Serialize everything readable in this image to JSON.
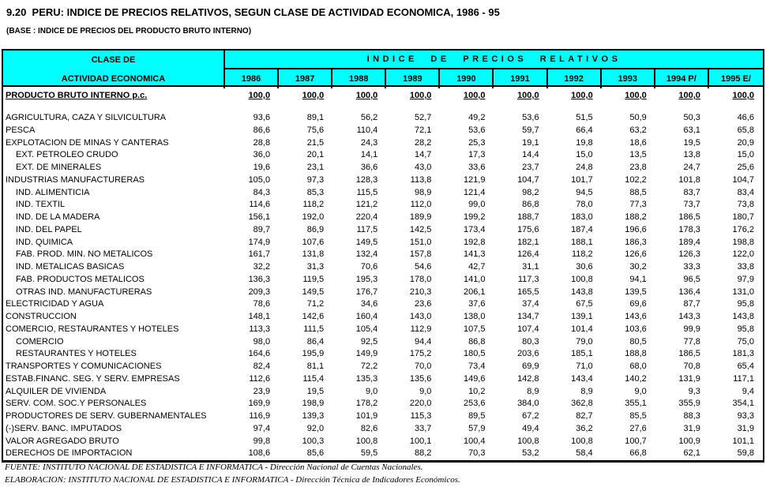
{
  "title": "9.20  PERU: INDICE DE PRECIOS RELATIVOS, SEGUN CLASE DE ACTIVIDAD ECONOMICA, 1986 - 95",
  "subtitle": "(BASE : INDICE DE PRECIOS DEL PRODUCTO BRUTO INTERNO)",
  "colors": {
    "header_fill": "#00ffff",
    "border": "#000000",
    "background": "#ffffff"
  },
  "table": {
    "left_header_line1": "CLASE DE",
    "left_header_line2": "ACTIVIDAD ECONOMICA",
    "group_header": "INDICE DE PRECIOS RELATIVOS",
    "years": [
      "1986",
      "1987",
      "1988",
      "1989",
      "1990",
      "1991",
      "1992",
      "1993",
      "1994 P/",
      "1995 E/"
    ],
    "rows": [
      {
        "label": "PRODUCTO BRUTO INTERNO p.c.",
        "bold": true,
        "indent": false,
        "gap_after": true,
        "values": [
          "100,0",
          "100,0",
          "100,0",
          "100,0",
          "100,0",
          "100,0",
          "100,0",
          "100,0",
          "100,0",
          "100,0"
        ]
      },
      {
        "label": "AGRICULTURA, CAZA Y SILVICULTURA",
        "indent": false,
        "values": [
          "93,6",
          "89,1",
          "56,2",
          "52,7",
          "49,2",
          "53,6",
          "51,5",
          "50,9",
          "50,3",
          "46,6"
        ]
      },
      {
        "label": "PESCA",
        "indent": false,
        "values": [
          "86,6",
          "75,6",
          "110,4",
          "72,1",
          "53,6",
          "59,7",
          "66,4",
          "63,2",
          "63,1",
          "65,8"
        ]
      },
      {
        "label": "EXPLOTACION DE MINAS Y CANTERAS",
        "indent": false,
        "values": [
          "28,8",
          "21,5",
          "24,3",
          "28,2",
          "25,3",
          "19,1",
          "19,8",
          "18,6",
          "19,5",
          "20,9"
        ]
      },
      {
        "label": "EXT. PETROLEO CRUDO",
        "indent": true,
        "values": [
          "36,0",
          "20,1",
          "14,1",
          "14,7",
          "17,3",
          "14,4",
          "15,0",
          "13,5",
          "13,8",
          "15,0"
        ]
      },
      {
        "label": "EXT. DE MINERALES",
        "indent": true,
        "values": [
          "19,6",
          "23,1",
          "36,6",
          "43,0",
          "33,6",
          "23,7",
          "24,8",
          "23,8",
          "24,7",
          "25,6"
        ]
      },
      {
        "label": "INDUSTRIAS MANUFACTURERAS",
        "indent": false,
        "values": [
          "105,0",
          "97,3",
          "128,3",
          "113,8",
          "121,9",
          "104,7",
          "101,7",
          "102,2",
          "101,8",
          "104,7"
        ]
      },
      {
        "label": "IND. ALIMENTICIA",
        "indent": true,
        "values": [
          "84,3",
          "85,3",
          "115,5",
          "98,9",
          "121,4",
          "98,2",
          "94,5",
          "88,5",
          "83,7",
          "83,4"
        ]
      },
      {
        "label": "IND. TEXTIL",
        "indent": true,
        "values": [
          "114,6",
          "118,2",
          "121,2",
          "112,0",
          "99,0",
          "86,8",
          "78,0",
          "77,3",
          "73,7",
          "73,8"
        ]
      },
      {
        "label": "IND. DE LA MADERA",
        "indent": true,
        "values": [
          "156,1",
          "192,0",
          "220,4",
          "189,9",
          "199,2",
          "188,7",
          "183,0",
          "188,2",
          "186,5",
          "180,7"
        ]
      },
      {
        "label": "IND. DEL PAPEL",
        "indent": true,
        "values": [
          "89,7",
          "86,9",
          "117,5",
          "142,5",
          "173,4",
          "175,6",
          "187,4",
          "196,6",
          "178,3",
          "176,2"
        ]
      },
      {
        "label": "IND. QUIMICA",
        "indent": true,
        "values": [
          "174,9",
          "107,6",
          "149,5",
          "151,0",
          "192,8",
          "182,1",
          "188,1",
          "186,3",
          "189,4",
          "198,8"
        ]
      },
      {
        "label": "FAB. PROD. MIN. NO METALICOS",
        "indent": true,
        "values": [
          "161,7",
          "131,8",
          "132,4",
          "157,8",
          "141,3",
          "126,4",
          "118,2",
          "126,6",
          "126,3",
          "122,0"
        ]
      },
      {
        "label": "IND. METALICAS BASICAS",
        "indent": true,
        "values": [
          "32,2",
          "31,3",
          "70,6",
          "54,6",
          "42,7",
          "31,1",
          "30,6",
          "30,2",
          "33,3",
          "33,8"
        ]
      },
      {
        "label": "FAB. PRODUCTOS METALICOS",
        "indent": true,
        "values": [
          "136,3",
          "119,5",
          "195,3",
          "178,0",
          "141,0",
          "117,3",
          "100,8",
          "94,1",
          "96,5",
          "97,9"
        ]
      },
      {
        "label": "OTRAS IND. MANUFACTURERAS",
        "indent": true,
        "values": [
          "209,3",
          "149,5",
          "176,7",
          "210,3",
          "206,1",
          "165,5",
          "143,8",
          "139,5",
          "136,4",
          "131,0"
        ]
      },
      {
        "label": "ELECTRICIDAD Y AGUA",
        "indent": false,
        "values": [
          "78,6",
          "71,2",
          "34,6",
          "23,6",
          "37,6",
          "37,4",
          "67,5",
          "69,6",
          "87,7",
          "95,8"
        ]
      },
      {
        "label": "CONSTRUCCION",
        "indent": false,
        "values": [
          "148,1",
          "142,6",
          "160,4",
          "143,0",
          "138,0",
          "134,7",
          "139,1",
          "143,6",
          "143,3",
          "143,8"
        ]
      },
      {
        "label": "COMERCIO, RESTAURANTES Y HOTELES",
        "indent": false,
        "values": [
          "113,3",
          "111,5",
          "105,4",
          "112,9",
          "107,5",
          "107,4",
          "101,4",
          "103,6",
          "99,9",
          "95,8"
        ]
      },
      {
        "label": "COMERCIO",
        "indent": true,
        "values": [
          "98,0",
          "86,4",
          "92,5",
          "94,4",
          "86,8",
          "80,3",
          "79,0",
          "80,5",
          "77,8",
          "75,0"
        ]
      },
      {
        "label": "RESTAURANTES Y HOTELES",
        "indent": true,
        "values": [
          "164,6",
          "195,9",
          "149,9",
          "175,2",
          "180,5",
          "203,6",
          "185,1",
          "188,8",
          "186,5",
          "181,3"
        ]
      },
      {
        "label": "TRANSPORTES Y COMUNICACIONES",
        "indent": false,
        "values": [
          "82,4",
          "81,1",
          "72,2",
          "70,0",
          "73,4",
          "69,9",
          "71,0",
          "68,0",
          "70,8",
          "65,4"
        ]
      },
      {
        "label": "ESTAB.FINANC. SEG. Y SERV. EMPRESAS",
        "indent": false,
        "values": [
          "112,6",
          "115,4",
          "135,3",
          "135,6",
          "149,6",
          "142,8",
          "143,4",
          "140,2",
          "131,9",
          "117,1"
        ]
      },
      {
        "label": "ALQUILER DE VIVIENDA",
        "indent": false,
        "values": [
          "23,9",
          "19,5",
          "9,0",
          "9,0",
          "10,2",
          "8,9",
          "8,9",
          "9,0",
          "9,3",
          "9,4"
        ]
      },
      {
        "label": "SERV. COM. SOC.Y PERSONALES",
        "indent": false,
        "values": [
          "169,9",
          "198,9",
          "178,2",
          "220,0",
          "253,6",
          "384,0",
          "362,8",
          "355,1",
          "355,9",
          "354,1"
        ]
      },
      {
        "label": "PRODUCTORES DE SERV. GUBERNAMENTALES",
        "indent": false,
        "values": [
          "116,9",
          "139,3",
          "101,9",
          "115,3",
          "89,5",
          "67,2",
          "82,7",
          "85,5",
          "88,3",
          "93,3"
        ]
      },
      {
        "label": "(-)SERV. BANC. IMPUTADOS",
        "indent": false,
        "values": [
          "97,4",
          "92,0",
          "82,6",
          "33,7",
          "57,9",
          "49,4",
          "36,2",
          "27,6",
          "31,9",
          "31,9"
        ]
      },
      {
        "label": "VALOR AGREGADO BRUTO",
        "indent": false,
        "values": [
          "99,8",
          "100,3",
          "100,8",
          "100,1",
          "100,4",
          "100,8",
          "100,8",
          "100,7",
          "100,9",
          "101,1"
        ]
      },
      {
        "label": "DERECHOS DE IMPORTACION",
        "indent": false,
        "values": [
          "108,6",
          "85,6",
          "59,5",
          "88,2",
          "70,3",
          "53,2",
          "58,4",
          "66,8",
          "62,1",
          "59,8"
        ]
      }
    ]
  },
  "footer": {
    "fuente": "FUENTE: INSTITUTO NACIONAL DE ESTADISTICA E INFORMATICA - Dirección Nacional de Cuentas Nacionales.",
    "elaboracion": "ELABORACION: INSTITUTO NACIONAL DE ESTADISTICA E INFORMATICA - Dirección Técnica de Indicadores Económicos."
  }
}
